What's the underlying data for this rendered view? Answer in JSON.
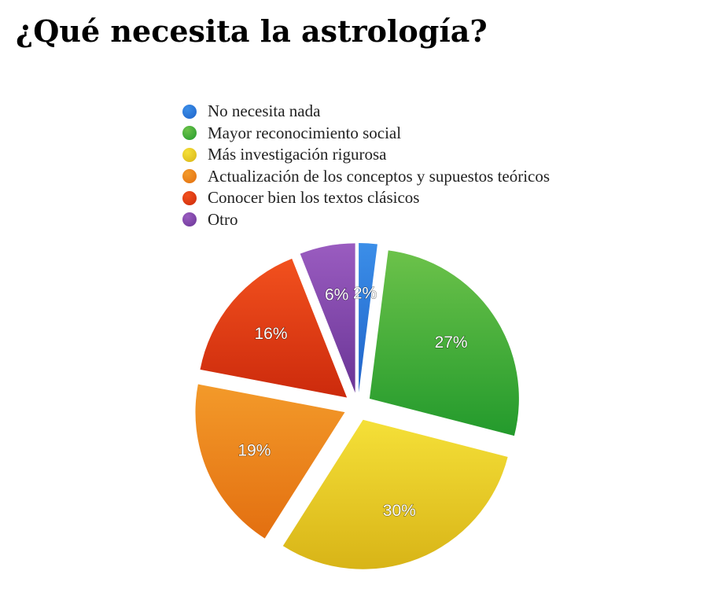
{
  "title": "¿Qué necesita la astrología?",
  "chart_data": {
    "type": "pie",
    "title": "¿Qué necesita la astrología?",
    "legend_position": "top",
    "slices": [
      {
        "label": "No necesita nada",
        "value": 2,
        "display": "2%",
        "color": "#3b8ee8",
        "color_dark": "#1f63c9"
      },
      {
        "label": "Mayor reconocimiento social",
        "value": 27,
        "display": "27%",
        "color": "#6cc24a",
        "color_dark": "#239a2c"
      },
      {
        "label": "Más investigación rigurosa",
        "value": 30,
        "display": "30%",
        "color": "#f5e038",
        "color_dark": "#d8b417"
      },
      {
        "label": "Actualización de los conceptos y supuestos teóricos",
        "value": 19,
        "display": "19%",
        "color": "#f39a2a",
        "color_dark": "#e36f10"
      },
      {
        "label": "Conocer bien los textos clásicos",
        "value": 16,
        "display": "16%",
        "color": "#f2511e",
        "color_dark": "#cc2a0c"
      },
      {
        "label": "Otro",
        "value": 6,
        "display": "6%",
        "color": "#9a5cc0",
        "color_dark": "#6a3596"
      }
    ]
  }
}
